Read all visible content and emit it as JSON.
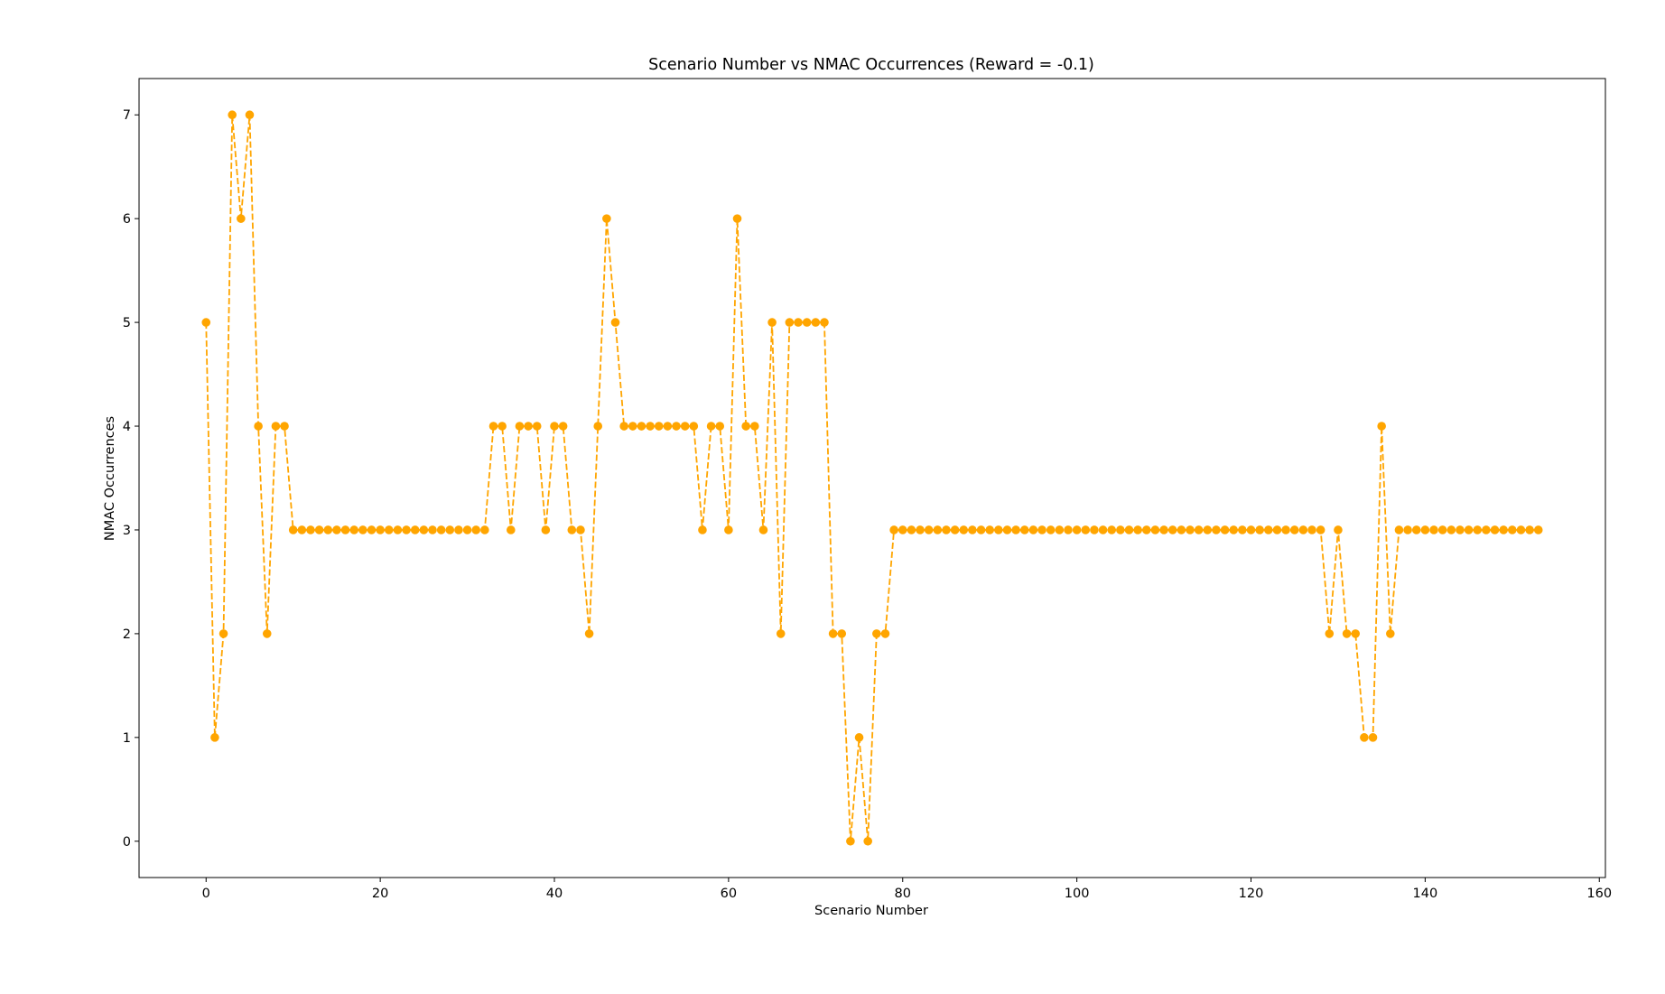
{
  "chart_data": {
    "type": "line",
    "title": "Scenario Number vs NMAC Occurrences (Reward = -0.1)",
    "xlabel": "Scenario Number",
    "ylabel": "NMAC Occurrences",
    "xlim": [
      -7.7,
      160.7
    ],
    "ylim": [
      -0.35,
      7.35
    ],
    "xticks": [
      0,
      20,
      40,
      60,
      80,
      100,
      120,
      140,
      160
    ],
    "yticks": [
      0,
      1,
      2,
      3,
      4,
      5,
      6,
      7
    ],
    "grid": false,
    "line_style": "dashed",
    "marker": "circle",
    "colors": {
      "series": "#ffa500"
    },
    "series": [
      {
        "name": "",
        "y": [
          5,
          1,
          2,
          7,
          6,
          7,
          4,
          2,
          4,
          4,
          3,
          3,
          3,
          3,
          3,
          3,
          3,
          3,
          3,
          3,
          3,
          3,
          3,
          3,
          3,
          3,
          3,
          3,
          3,
          3,
          3,
          3,
          3,
          4,
          4,
          3,
          4,
          4,
          4,
          3,
          4,
          4,
          3,
          3,
          2,
          4,
          6,
          5,
          4,
          4,
          4,
          4,
          4,
          4,
          4,
          4,
          4,
          3,
          4,
          4,
          3,
          6,
          4,
          4,
          3,
          5,
          2,
          5,
          5,
          5,
          5,
          5,
          2,
          2,
          0,
          1,
          0,
          2,
          2,
          3,
          3,
          3,
          3,
          3,
          3,
          3,
          3,
          3,
          3,
          3,
          3,
          3,
          3,
          3,
          3,
          3,
          3,
          3,
          3,
          3,
          3,
          3,
          3,
          3,
          3,
          3,
          3,
          3,
          3,
          3,
          3,
          3,
          3,
          3,
          3,
          3,
          3,
          3,
          3,
          3,
          3,
          3,
          3,
          3,
          3,
          3,
          3,
          3,
          3,
          2,
          3,
          2,
          2,
          1,
          1,
          4,
          2,
          3,
          3,
          3,
          3,
          3,
          3,
          3,
          3,
          3,
          3,
          3,
          3,
          3,
          3,
          3,
          3,
          3
        ]
      }
    ]
  }
}
